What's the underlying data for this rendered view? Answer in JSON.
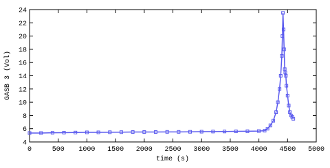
{
  "chart_data": {
    "type": "line",
    "xlabel": "time (s)",
    "ylabel": "GASB 3 (Vol)",
    "xlim": [
      0,
      5000
    ],
    "xticks": [
      0,
      500,
      1000,
      1500,
      2000,
      2500,
      3000,
      3500,
      4000,
      4500,
      5000
    ],
    "ylim": [
      4,
      24
    ],
    "yticks": [
      4,
      6,
      8,
      10,
      12,
      14,
      16,
      18,
      20,
      22,
      24
    ],
    "series": [
      {
        "color": "#5a5aee",
        "x": [
          0,
          200,
          400,
          600,
          800,
          1000,
          1200,
          1400,
          1600,
          1800,
          2000,
          2200,
          2400,
          2600,
          2800,
          3000,
          3200,
          3400,
          3600,
          3800,
          4000,
          4100,
          4150,
          4200,
          4250,
          4300,
          4330,
          4360,
          4380,
          4400,
          4410,
          4420,
          4430,
          4440,
          4450,
          4460,
          4470,
          4480,
          4500,
          4520,
          4540,
          4560,
          4580,
          4600
        ],
        "y": [
          5.35,
          5.35,
          5.38,
          5.4,
          5.42,
          5.45,
          5.45,
          5.47,
          5.48,
          5.5,
          5.5,
          5.5,
          5.52,
          5.52,
          5.53,
          5.55,
          5.57,
          5.58,
          5.6,
          5.62,
          5.65,
          5.7,
          6.0,
          6.5,
          7.2,
          8.5,
          10,
          12,
          14,
          17,
          20,
          23.5,
          21,
          18,
          15,
          14.5,
          14,
          12.5,
          11,
          9.5,
          8.5,
          8,
          7.8,
          7.5
        ]
      }
    ]
  }
}
